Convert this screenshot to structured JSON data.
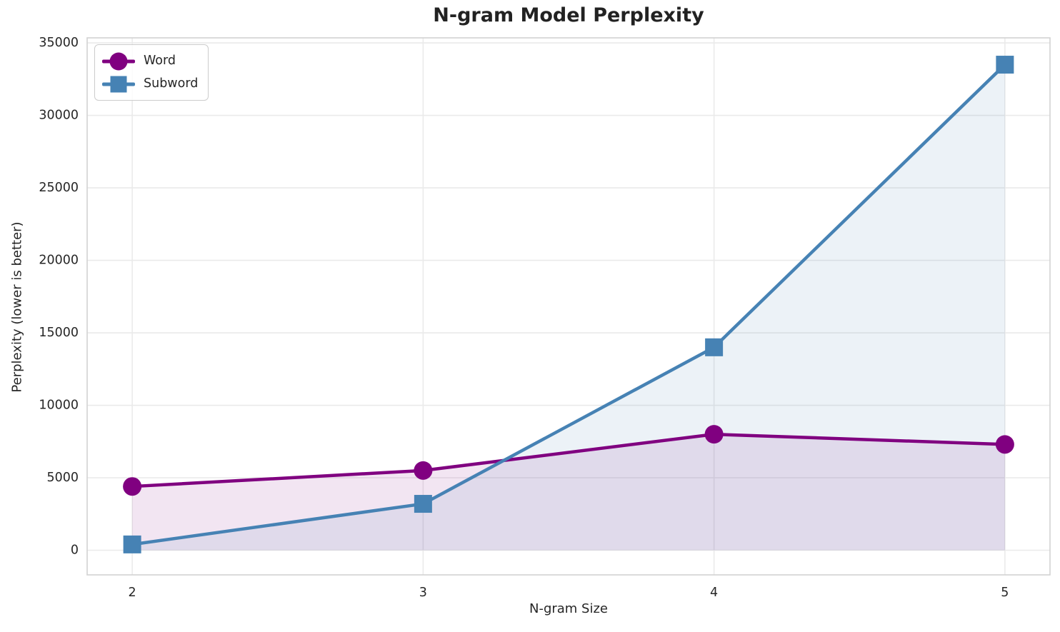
{
  "figure": {
    "title": "N-gram Model Perplexity",
    "xlabel": "N-gram Size",
    "ylabel": "Perplexity (lower is better)"
  },
  "chart_data": {
    "type": "line",
    "title": "N-gram Model Perplexity",
    "xlabel": "N-gram Size",
    "ylabel": "Perplexity (lower is better)",
    "x": [
      2,
      3,
      4,
      5
    ],
    "series": [
      {
        "name": "Word",
        "values": [
          4400,
          5500,
          8000,
          7300
        ],
        "color": "#800080",
        "marker": "circle"
      },
      {
        "name": "Subword",
        "values": [
          400,
          3200,
          14000,
          33500
        ],
        "color": "#4682B4",
        "marker": "square"
      }
    ],
    "xticks": [
      2,
      3,
      4,
      5
    ],
    "yticks": [
      0,
      5000,
      10000,
      15000,
      20000,
      25000,
      30000,
      35000
    ],
    "xlim": [
      1.845,
      5.155
    ],
    "ylim": [
      -1700,
      35350
    ],
    "grid": true,
    "fill_to_zero": true,
    "fill_alpha": 0.1,
    "legend_position": "upper left",
    "colors": {
      "grid": "#eaeaea",
      "spine": "#d2d2d2",
      "tick_text": "#262626"
    }
  }
}
